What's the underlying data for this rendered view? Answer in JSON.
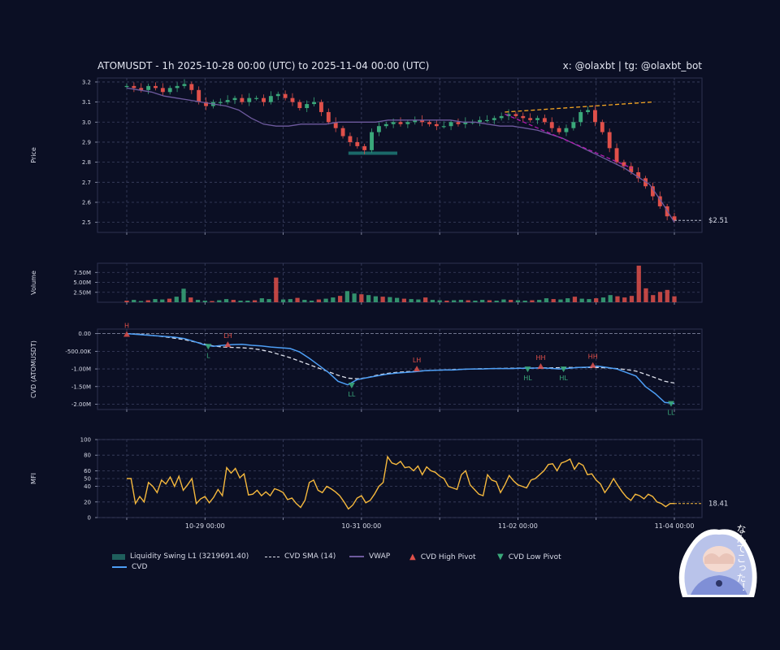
{
  "header": {
    "title": "ATOMUSDT - 1h 2025-10-28 00:00 (UTC) to 2025-11-04 00:00 (UTC)",
    "credit": "x: @olaxbt | tg: @olaxbt_bot"
  },
  "legend": {
    "liquidity": "Liquidity Swing L1 (3219691.40)",
    "cvd": "CVD",
    "cvd_sma": "CVD SMA (14)",
    "vwap": "VWAP",
    "cvd_high": "CVD High Pivot",
    "cvd_low": "CVD Low Pivot"
  },
  "sticker": {
    "text": "なんてこった！"
  },
  "colors": {
    "background": "#0b0f24",
    "up": "#3aa87a",
    "down": "#e0504a",
    "vwap": "#6e5a9e",
    "cvd": "#4d9ef5",
    "cvd_sma": "#dcdfea",
    "mfi": "#f5b83d",
    "trend_up": "#f5a623",
    "trend_down": "#b21bb0",
    "liquidity": "#1f7f7a",
    "high_pivot": "#e0504a",
    "low_pivot": "#3aa87a"
  },
  "chart_data": [
    {
      "type": "candlestick",
      "ylabel": "Price",
      "ylim": [
        2.45,
        3.22
      ],
      "yticks": [
        "3.2",
        "3.1",
        "3.0",
        "2.9",
        "2.8",
        "2.7",
        "2.6",
        "2.5"
      ],
      "xlim": [
        "2025-10-28 00:00",
        "2025-11-04 00:00"
      ],
      "close_series": [
        3.18,
        3.17,
        3.16,
        3.18,
        3.17,
        3.15,
        3.17,
        3.18,
        3.19,
        3.16,
        3.1,
        3.08,
        3.1,
        3.1,
        3.11,
        3.12,
        3.1,
        3.12,
        3.12,
        3.1,
        3.13,
        3.14,
        3.12,
        3.1,
        3.07,
        3.09,
        3.1,
        3.05,
        3.0,
        2.97,
        2.93,
        2.9,
        2.88,
        2.86,
        2.95,
        2.98,
        2.99,
        3.0,
        2.99,
        3.0,
        3.01,
        3.0,
        2.99,
        2.98,
        2.98,
        3.0,
        2.99,
        3.0,
        3.0,
        3.01,
        3.01,
        3.02,
        3.03,
        3.04,
        3.03,
        3.02,
        3.01,
        3.02,
        3.0,
        2.97,
        2.95,
        2.97,
        3.0,
        3.05,
        3.06,
        3.0,
        2.95,
        2.87,
        2.8,
        2.78,
        2.75,
        2.72,
        2.68,
        2.63,
        2.58,
        2.53,
        2.51
      ],
      "current_price_label": "$2.51",
      "vwap": [
        3.17,
        3.16,
        3.15,
        3.13,
        3.12,
        3.11,
        3.1,
        3.09,
        3.08,
        3.06,
        3.02,
        2.99,
        2.98,
        2.98,
        2.99,
        2.99,
        2.99,
        3.0,
        3.0,
        3.0,
        3.0,
        3.01,
        3.01,
        3.01,
        3.01,
        3.01,
        3.01,
        3.0,
        3.0,
        2.99,
        2.98,
        2.98,
        2.97,
        2.96,
        2.94,
        2.92,
        2.89,
        2.86,
        2.83,
        2.8,
        2.77,
        2.73,
        2.69,
        2.6,
        2.5
      ],
      "liquidity_swing_level": 2.845,
      "trendline_upper": {
        "from": [
          3.05,
          "2025-11-01 20:00"
        ],
        "to": [
          3.1,
          "2025-11-03 17:00"
        ]
      },
      "trendline_lower": {
        "from": [
          3.04,
          "2025-11-01 20:00"
        ],
        "to": [
          2.77,
          "2025-11-03 11:00"
        ]
      }
    },
    {
      "type": "bar",
      "ylabel": "Volume",
      "ylim": [
        0,
        9800000
      ],
      "yticks": [
        "7.50M",
        "5.00M",
        "2.50M"
      ],
      "values": [
        0.4,
        0.6,
        0.3,
        0.5,
        0.8,
        0.7,
        0.9,
        1.4,
        3.4,
        1.2,
        0.6,
        0.4,
        0.3,
        0.5,
        0.8,
        0.6,
        0.4,
        0.4,
        0.5,
        1.0,
        0.8,
        6.2,
        0.7,
        0.8,
        1.1,
        0.6,
        0.4,
        0.7,
        0.9,
        1.2,
        1.6,
        2.8,
        2.2,
        2.0,
        1.8,
        1.5,
        1.4,
        1.3,
        1.1,
        0.9,
        0.8,
        0.7,
        1.2,
        0.6,
        0.5,
        0.4,
        0.5,
        0.6,
        0.5,
        0.4,
        0.6,
        0.5,
        0.4,
        0.7,
        0.6,
        0.5,
        0.4,
        0.5,
        0.6,
        1.0,
        0.8,
        0.7,
        1.0,
        1.4,
        0.9,
        0.8,
        1.0,
        1.2,
        1.8,
        1.5,
        1.2,
        1.6,
        9.2,
        3.5,
        1.8,
        2.6,
        3.1,
        1.5
      ]
    },
    {
      "type": "line",
      "ylabel": "CVD (ATOMUSDT)",
      "ylim": [
        -2150000,
        130000
      ],
      "yticks": [
        "0.00",
        "-500.00K",
        "-1.00M",
        "-1.50M",
        "-2.00M"
      ],
      "cvd": [
        0,
        -20000,
        -40000,
        -60000,
        -80000,
        -100000,
        -140000,
        -220000,
        -310000,
        -360000,
        -330000,
        -310000,
        -300000,
        -330000,
        -350000,
        -380000,
        -400000,
        -420000,
        -520000,
        -700000,
        -900000,
        -1100000,
        -1350000,
        -1450000,
        -1300000,
        -1250000,
        -1200000,
        -1150000,
        -1120000,
        -1100000,
        -1080000,
        -1050000,
        -1040000,
        -1030000,
        -1030000,
        -1010000,
        -1000000,
        -1000000,
        -990000,
        -990000,
        -990000,
        -980000,
        -980000,
        -970000,
        -980000,
        -1000000,
        -980000,
        -960000,
        -950000,
        -920000,
        -960000,
        -1000000,
        -1100000,
        -1200000,
        -1500000,
        -1700000,
        -1950000,
        -1980000
      ],
      "cvd_sma": [
        0,
        -10000,
        -30000,
        -60000,
        -90000,
        -130000,
        -170000,
        -230000,
        -290000,
        -350000,
        -380000,
        -390000,
        -400000,
        -420000,
        -460000,
        -520000,
        -600000,
        -680000,
        -780000,
        -880000,
        -980000,
        -1080000,
        -1180000,
        -1260000,
        -1280000,
        -1250000,
        -1180000,
        -1130000,
        -1100000,
        -1080000,
        -1070000,
        -1050000,
        -1040000,
        -1030000,
        -1020000,
        -1010000,
        -1000000,
        -995000,
        -990000,
        -985000,
        -980000,
        -975000,
        -975000,
        -970000,
        -970000,
        -965000,
        -960000,
        -960000,
        -960000,
        -960000,
        -970000,
        -990000,
        -1020000,
        -1060000,
        -1150000,
        -1250000,
        -1350000,
        -1400000
      ],
      "pivots": [
        {
          "label": "H",
          "kind": "high",
          "x": "2025-10-28 00:00",
          "y": -20000
        },
        {
          "label": "L",
          "kind": "low",
          "x": "2025-10-29 01:00",
          "y": -360000
        },
        {
          "label": "LH",
          "kind": "high",
          "x": "2025-10-29 07:00",
          "y": -310000
        },
        {
          "label": "LL",
          "kind": "low",
          "x": "2025-10-30 21:00",
          "y": -1460000
        },
        {
          "label": "LH",
          "kind": "high",
          "x": "2025-10-31 17:00",
          "y": -1000000
        },
        {
          "label": "HL",
          "kind": "low",
          "x": "2025-11-02 03:00",
          "y": -1000000
        },
        {
          "label": "HH",
          "kind": "high",
          "x": "2025-11-02 07:00",
          "y": -930000
        },
        {
          "label": "HL",
          "kind": "low",
          "x": "2025-11-02 14:00",
          "y": -1000000
        },
        {
          "label": "HH",
          "kind": "high",
          "x": "2025-11-02 23:00",
          "y": -900000
        },
        {
          "label": "LL",
          "kind": "low",
          "x": "2025-11-03 23:00",
          "y": -1980000
        }
      ]
    },
    {
      "type": "line",
      "ylabel": "MFI",
      "ylim": [
        0,
        100
      ],
      "yticks": [
        "100",
        "80",
        "60",
        "50",
        "40",
        "20",
        "0"
      ],
      "values": [
        50,
        50,
        18,
        27,
        20,
        45,
        40,
        32,
        48,
        43,
        52,
        40,
        53,
        35,
        42,
        50,
        18,
        24,
        27,
        19,
        26,
        36,
        28,
        64,
        57,
        63,
        51,
        56,
        29,
        30,
        35,
        28,
        33,
        28,
        37,
        35,
        32,
        23,
        25,
        18,
        13,
        22,
        45,
        48,
        35,
        32,
        40,
        37,
        33,
        28,
        20,
        11,
        16,
        25,
        28,
        19,
        22,
        30,
        40,
        45,
        78,
        70,
        68,
        72,
        64,
        65,
        60,
        66,
        55,
        65,
        60,
        58,
        53,
        50,
        40,
        38,
        36,
        55,
        60,
        42,
        36,
        30,
        28,
        55,
        48,
        46,
        32,
        42,
        54,
        47,
        42,
        40,
        38,
        48,
        50,
        55,
        60,
        68,
        69,
        60,
        70,
        72,
        75,
        62,
        70,
        67,
        55,
        56,
        48,
        43,
        32,
        40,
        50,
        41,
        33,
        26,
        22,
        30,
        28,
        24,
        30,
        27,
        20,
        18,
        14,
        18,
        18
      ],
      "last_value_label": "18.41"
    }
  ],
  "x_axis": {
    "ticks": [
      {
        "t": "2025-10-28 00:00",
        "label": ""
      },
      {
        "t": "2025-10-29 00:00",
        "label": "10-29 00:00"
      },
      {
        "t": "2025-10-30 00:00",
        "label": ""
      },
      {
        "t": "2025-10-31 00:00",
        "label": "10-31 00:00"
      },
      {
        "t": "2025-11-01 00:00",
        "label": ""
      },
      {
        "t": "2025-11-02 00:00",
        "label": "11-02 00:00"
      },
      {
        "t": "2025-11-03 00:00",
        "label": ""
      },
      {
        "t": "2025-11-04 00:00",
        "label": "11-04 00:00"
      }
    ]
  }
}
